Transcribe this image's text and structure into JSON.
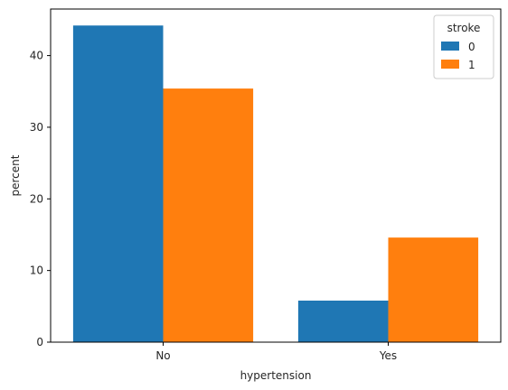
{
  "chart_data": {
    "type": "bar",
    "categories": [
      "No",
      "Yes"
    ],
    "series": [
      {
        "name": "0",
        "values": [
          44.2,
          5.8
        ],
        "color": "#1f77b4"
      },
      {
        "name": "1",
        "values": [
          35.4,
          14.6
        ],
        "color": "#ff7f0e"
      }
    ],
    "xlabel": "hypertension",
    "ylabel": "percent",
    "ylim": [
      0,
      46.5
    ],
    "yticks": [
      0,
      10,
      20,
      30,
      40
    ],
    "grid": false,
    "legend": {
      "title": "stroke",
      "placement": "top-right"
    }
  }
}
